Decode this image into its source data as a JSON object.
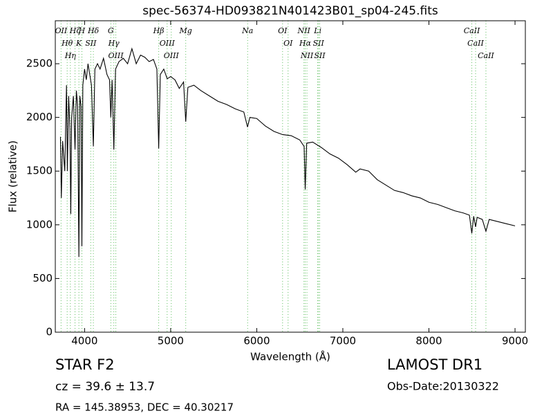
{
  "chart_data": {
    "type": "line",
    "title": "spec-56374-HD093821N401423B01_sp04-245.fits",
    "xlabel": "Wavelength (Å)",
    "ylabel": "Flux (relative)",
    "xlim": [
      3660,
      9120
    ],
    "ylim": [
      0,
      2900
    ],
    "xticks": [
      4000,
      5000,
      6000,
      7000,
      8000,
      9000
    ],
    "yticks": [
      0,
      500,
      1000,
      1500,
      2000,
      2500
    ],
    "color": "#000000",
    "marker_color": "#5fbf5f",
    "x": [
      3720,
      3730,
      3745,
      3770,
      3790,
      3800,
      3815,
      3830,
      3840,
      3850,
      3870,
      3889,
      3905,
      3920,
      3934,
      3945,
      3960,
      3969,
      3980,
      4000,
      4020,
      4040,
      4060,
      4080,
      4102,
      4120,
      4150,
      4180,
      4220,
      4260,
      4290,
      4305,
      4320,
      4340,
      4360,
      4400,
      4450,
      4500,
      4550,
      4600,
      4650,
      4700,
      4750,
      4800,
      4840,
      4861,
      4880,
      4920,
      4960,
      5000,
      5050,
      5100,
      5150,
      5175,
      5200,
      5270,
      5350,
      5450,
      5550,
      5650,
      5750,
      5850,
      5893,
      5920,
      6000,
      6100,
      6200,
      6300,
      6400,
      6500,
      6550,
      6563,
      6580,
      6650,
      6750,
      6850,
      6950,
      7050,
      7150,
      7200,
      7300,
      7400,
      7500,
      7600,
      7700,
      7800,
      7900,
      8000,
      8100,
      8200,
      8300,
      8400,
      8470,
      8498,
      8520,
      8542,
      8560,
      8620,
      8662,
      8700,
      8800,
      8900,
      9000
    ],
    "values": [
      1820,
      1250,
      1780,
      1500,
      2300,
      1500,
      2200,
      1900,
      1100,
      2000,
      2200,
      1700,
      2250,
      2100,
      700,
      2200,
      2100,
      800,
      2300,
      2450,
      2350,
      2500,
      2400,
      2300,
      1730,
      2450,
      2500,
      2450,
      2550,
      2400,
      2350,
      2000,
      2350,
      1700,
      2450,
      2520,
      2550,
      2500,
      2640,
      2500,
      2580,
      2560,
      2520,
      2540,
      2450,
      1710,
      2400,
      2450,
      2360,
      2380,
      2350,
      2270,
      2330,
      1960,
      2280,
      2300,
      2250,
      2200,
      2150,
      2120,
      2080,
      2050,
      1910,
      2000,
      1990,
      1920,
      1870,
      1840,
      1830,
      1790,
      1730,
      1330,
      1760,
      1770,
      1720,
      1660,
      1620,
      1560,
      1490,
      1520,
      1500,
      1420,
      1370,
      1320,
      1300,
      1270,
      1250,
      1210,
      1190,
      1160,
      1130,
      1110,
      1090,
      920,
      1080,
      980,
      1070,
      1050,
      940,
      1050,
      1030,
      1010,
      990
    ],
    "lines": [
      {
        "label": "OII",
        "x": 3727
      },
      {
        "label": "Hθ",
        "x": 3798
      },
      {
        "label": "Hη",
        "x": 3835
      },
      {
        "label": "Hζ",
        "x": 3889
      },
      {
        "label": "K",
        "x": 3934
      },
      {
        "label": "H",
        "x": 3969
      },
      {
        "label": "SII",
        "x": 4072
      },
      {
        "label": "Hδ",
        "x": 4102
      },
      {
        "label": "G",
        "x": 4305
      },
      {
        "label": "Hγ",
        "x": 4340
      },
      {
        "label": "OIII",
        "x": 4363
      },
      {
        "label": "Hβ",
        "x": 4861
      },
      {
        "label": "OIII",
        "x": 4959
      },
      {
        "label": "OIII",
        "x": 5007
      },
      {
        "label": "Mg",
        "x": 5175
      },
      {
        "label": "Na",
        "x": 5894
      },
      {
        "label": "OI",
        "x": 6300
      },
      {
        "label": "OI",
        "x": 6364
      },
      {
        "label": "NII",
        "x": 6548
      },
      {
        "label": "Hα",
        "x": 6563
      },
      {
        "label": "NII",
        "x": 6583
      },
      {
        "label": "Li",
        "x": 6708
      },
      {
        "label": "SII",
        "x": 6717
      },
      {
        "label": "SII",
        "x": 6731
      },
      {
        "label": "CaII",
        "x": 8498
      },
      {
        "label": "CaII",
        "x": 8542
      },
      {
        "label": "CaII",
        "x": 8662
      }
    ]
  },
  "info": {
    "object": "STAR   F2",
    "redshift": "cz = 39.6 ± 13.7",
    "coords": "RA = 145.38953, DEC = 40.30217",
    "survey": "LAMOST DR1",
    "date": "Obs-Date:20130322"
  }
}
